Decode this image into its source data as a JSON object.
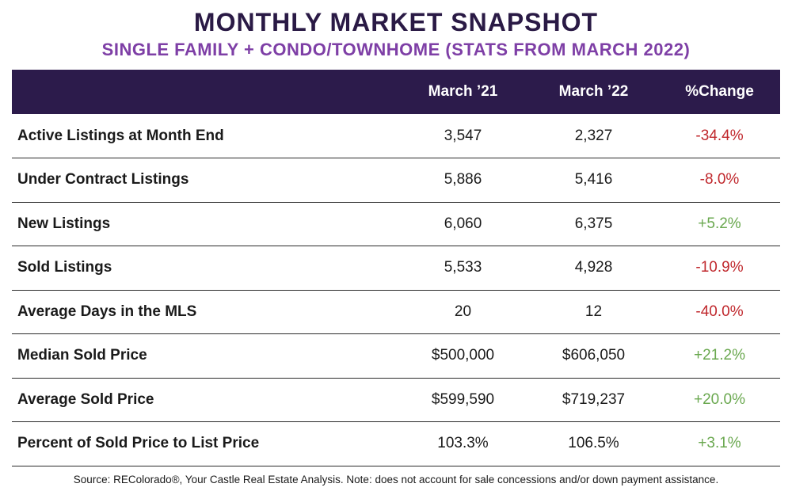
{
  "title": "MONTHLY MARKET SNAPSHOT",
  "subtitle": "SINGLE FAMILY + CONDO/TOWNHOME (STATS FROM MARCH 2022)",
  "colors": {
    "header_bg": "#2c1b4b",
    "subtitle": "#7e3fa6",
    "negative": "#c0282d",
    "positive": "#6aa84f"
  },
  "source": "Source: REColorado®, Your Castle Real Estate Analysis. Note: does not account for sale concessions and/or down payment assistance.",
  "chart_data": {
    "type": "table",
    "columns": [
      "",
      "March ’21",
      "March ’22",
      "%Change"
    ],
    "rows": [
      {
        "label": "Active Listings at Month End",
        "march_21": "3,547",
        "march_22": "2,327",
        "change": "-34.4%",
        "direction": "negative"
      },
      {
        "label": "Under Contract Listings",
        "march_21": "5,886",
        "march_22": "5,416",
        "change": "-8.0%",
        "direction": "negative"
      },
      {
        "label": "New Listings",
        "march_21": "6,060",
        "march_22": "6,375",
        "change": "+5.2%",
        "direction": "positive"
      },
      {
        "label": "Sold Listings",
        "march_21": "5,533",
        "march_22": "4,928",
        "change": "-10.9%",
        "direction": "negative"
      },
      {
        "label": "Average Days in the MLS",
        "march_21": "20",
        "march_22": "12",
        "change": "-40.0%",
        "direction": "negative"
      },
      {
        "label": "Median Sold Price",
        "march_21": "$500,000",
        "march_22": "$606,050",
        "change": "+21.2%",
        "direction": "positive"
      },
      {
        "label": "Average Sold Price",
        "march_21": "$599,590",
        "march_22": "$719,237",
        "change": "+20.0%",
        "direction": "positive"
      },
      {
        "label": "Percent of Sold Price to List Price",
        "march_21": "103.3%",
        "march_22": "106.5%",
        "change": "+3.1%",
        "direction": "positive"
      }
    ]
  }
}
